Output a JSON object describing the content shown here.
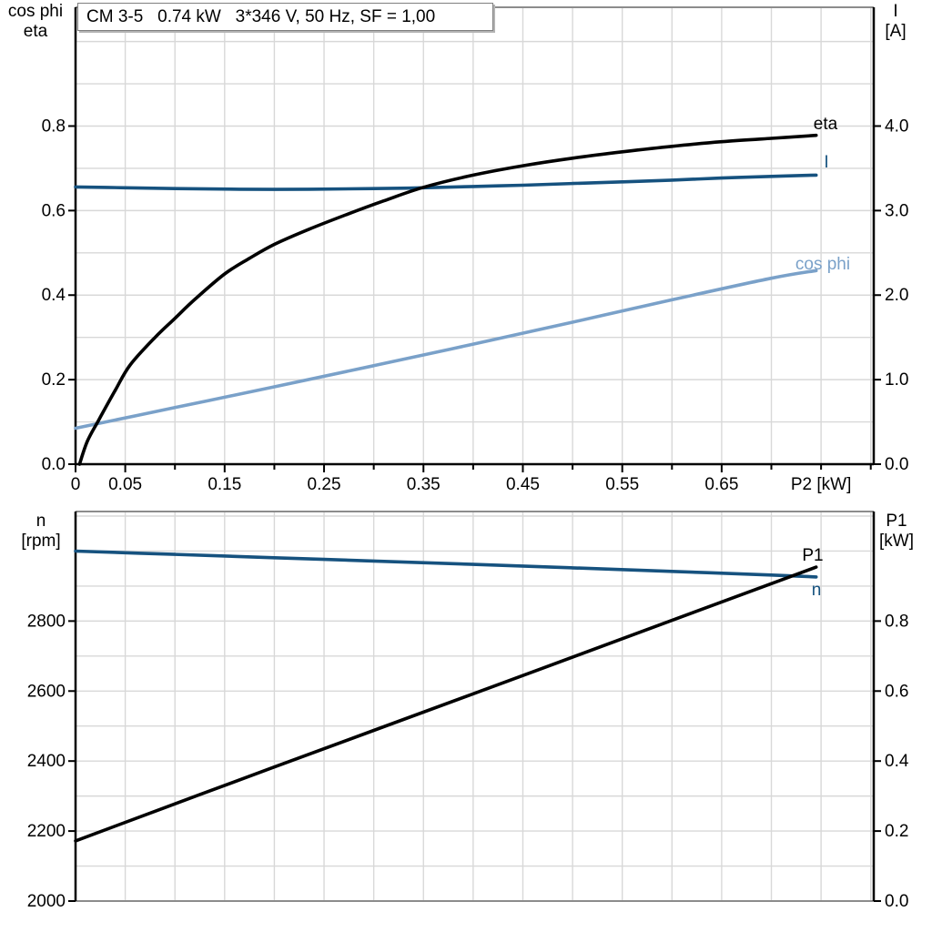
{
  "title": "CM 3-5   0.74 kW   3*346 V, 50 Hz, SF = 1,00",
  "colors": {
    "black": "#000000",
    "dark_blue": "#16527F",
    "light_blue": "#7AA1C9",
    "grid": "#D8D8D8",
    "frame": "#8C8C8C",
    "axis": "#000000"
  },
  "chart_data": [
    {
      "type": "line",
      "title": "CM 3-5   0.74 kW   3*346 V, 50 Hz, SF = 1,00",
      "x_axis": {
        "label": "P2 [kW]",
        "min": 0,
        "max": 0.803,
        "tick_step": 0.05,
        "grid_step": 0.05,
        "labeled_tick_values": [
          0,
          0.05,
          0.15,
          0.25,
          0.35,
          0.45,
          0.55,
          0.65
        ],
        "tick_labels": [
          "0",
          "0.05",
          "0.15",
          "0.25",
          "0.35",
          "0.45",
          "0.55",
          "0.65"
        ]
      },
      "y_left": {
        "title_lines": [
          "cos phi",
          "eta"
        ],
        "min": 0,
        "max": 1.081,
        "grid_step": 0.1,
        "tick_values": [
          0,
          0.2,
          0.4,
          0.6,
          0.8
        ],
        "tick_labels": [
          "0.0",
          "0.2",
          "0.4",
          "0.6",
          "0.8"
        ]
      },
      "y_right": {
        "title_lines": [
          "I",
          "[A]"
        ],
        "min": 0,
        "max": 5.405,
        "tick_values": [
          0,
          1,
          2,
          3,
          4
        ],
        "tick_labels": [
          "0.0",
          "1.0",
          "2.0",
          "3.0",
          "4.0"
        ]
      },
      "grid": true,
      "legend_position": "end-of-curve",
      "series": [
        {
          "name": "cos phi",
          "axis": "left",
          "color_key": "light_blue",
          "points": [
            [
              0,
              0.085
            ],
            [
              0.1,
              0.134
            ],
            [
              0.2,
              0.183
            ],
            [
              0.3,
              0.233
            ],
            [
              0.4,
              0.284
            ],
            [
              0.5,
              0.336
            ],
            [
              0.6,
              0.389
            ],
            [
              0.7,
              0.44
            ],
            [
              0.745,
              0.458
            ]
          ]
        },
        {
          "name": "I",
          "axis": "right",
          "color_key": "dark_blue",
          "points": [
            [
              0,
              3.28
            ],
            [
              0.05,
              3.27
            ],
            [
              0.1,
              3.26
            ],
            [
              0.2,
              3.25
            ],
            [
              0.3,
              3.26
            ],
            [
              0.35,
              3.27
            ],
            [
              0.4,
              3.285
            ],
            [
              0.45,
              3.3
            ],
            [
              0.5,
              3.32
            ],
            [
              0.55,
              3.34
            ],
            [
              0.6,
              3.36
            ],
            [
              0.65,
              3.385
            ],
            [
              0.7,
              3.405
            ],
            [
              0.745,
              3.42
            ]
          ]
        },
        {
          "name": "eta",
          "axis": "left",
          "color_key": "black",
          "points": [
            [
              0.004,
              0
            ],
            [
              0.012,
              0.055
            ],
            [
              0.023,
              0.103
            ],
            [
              0.04,
              0.175
            ],
            [
              0.055,
              0.235
            ],
            [
              0.08,
              0.3
            ],
            [
              0.1,
              0.345
            ],
            [
              0.12,
              0.39
            ],
            [
              0.15,
              0.45
            ],
            [
              0.175,
              0.487
            ],
            [
              0.2,
              0.52
            ],
            [
              0.235,
              0.556
            ],
            [
              0.272,
              0.59
            ],
            [
              0.31,
              0.623
            ],
            [
              0.35,
              0.655
            ],
            [
              0.4,
              0.684
            ],
            [
              0.45,
              0.706
            ],
            [
              0.5,
              0.724
            ],
            [
              0.55,
              0.739
            ],
            [
              0.6,
              0.752
            ],
            [
              0.65,
              0.763
            ],
            [
              0.7,
              0.771
            ],
            [
              0.745,
              0.778
            ]
          ]
        }
      ]
    },
    {
      "type": "line",
      "title": "",
      "x_axis": {
        "label": "",
        "min": 0,
        "max": 0.803,
        "tick_step": 0,
        "grid_step": 0.05,
        "labeled_tick_values": [],
        "tick_labels": []
      },
      "y_left": {
        "title_lines": [
          "n",
          "[rpm]"
        ],
        "min": 2000,
        "max": 3113,
        "grid_step": 100,
        "tick_values": [
          2000,
          2200,
          2400,
          2600,
          2800
        ],
        "tick_labels": [
          "2000",
          "2200",
          "2400",
          "2600",
          "2800"
        ]
      },
      "y_right": {
        "title_lines": [
          "P1",
          "[kW]"
        ],
        "min": 0,
        "max": 1.113,
        "tick_values": [
          0,
          0.2,
          0.4,
          0.6,
          0.8
        ],
        "tick_labels": [
          "0.0",
          "0.2",
          "0.4",
          "0.6",
          "0.8"
        ]
      },
      "grid": true,
      "legend_position": "end-of-curve",
      "series": [
        {
          "name": "n",
          "axis": "left",
          "color_key": "dark_blue",
          "points": [
            [
              0,
              3000
            ],
            [
              0.1,
              2990.5
            ],
            [
              0.2,
              2981
            ],
            [
              0.3,
              2971.5
            ],
            [
              0.4,
              2962
            ],
            [
              0.5,
              2952
            ],
            [
              0.6,
              2942
            ],
            [
              0.7,
              2931.5
            ],
            [
              0.745,
              2926
            ]
          ]
        },
        {
          "name": "P1",
          "axis": "right",
          "color_key": "black",
          "points": [
            [
              0,
              0.172
            ],
            [
              0.2,
              0.383
            ],
            [
              0.4,
              0.592
            ],
            [
              0.6,
              0.802
            ],
            [
              0.745,
              0.954
            ]
          ]
        }
      ]
    }
  ]
}
